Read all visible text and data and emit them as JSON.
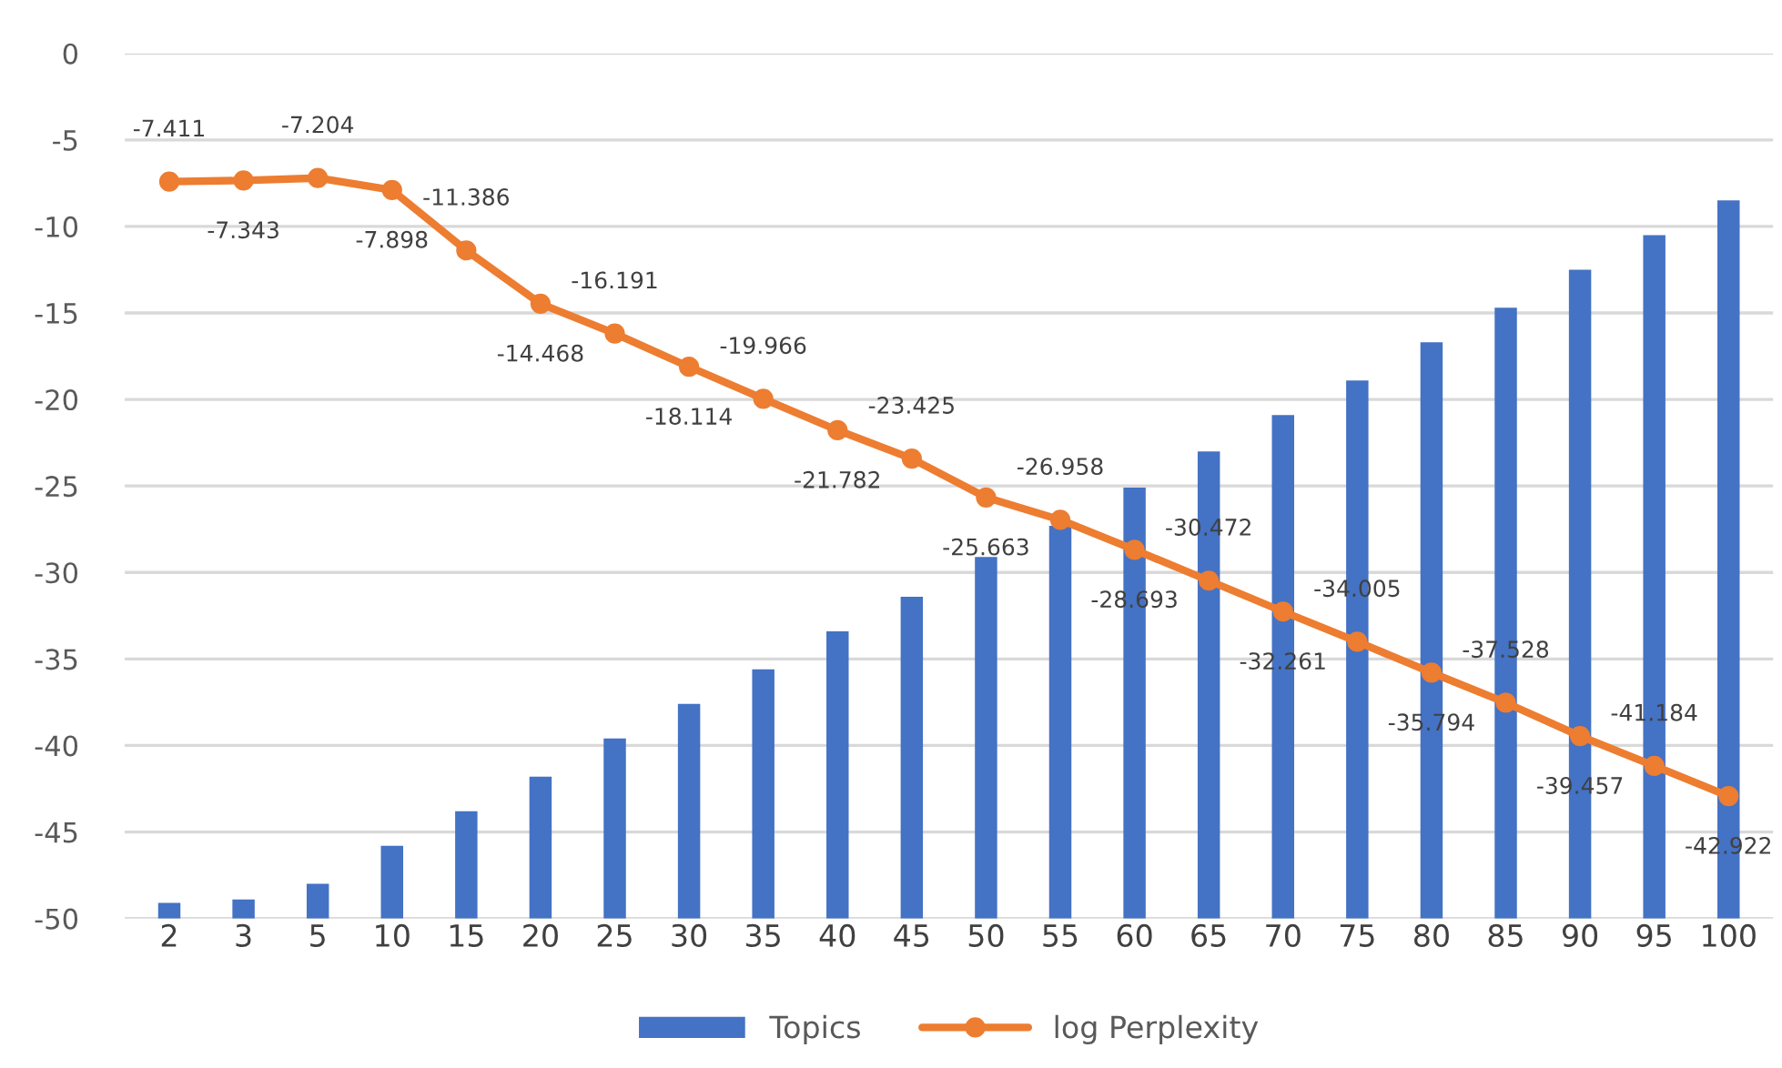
{
  "chart_data": {
    "type": "bar",
    "categories": [
      "2",
      "3",
      "5",
      "10",
      "15",
      "20",
      "25",
      "30",
      "35",
      "40",
      "45",
      "50",
      "55",
      "60",
      "65",
      "70",
      "75",
      "80",
      "85",
      "90",
      "95",
      "100"
    ],
    "series": [
      {
        "name": "Topics",
        "color": "#4472c4",
        "base": [
          -50,
          -50,
          -50,
          -50,
          -50,
          -50,
          -50,
          -50,
          -50,
          -50,
          -50,
          -50,
          -50,
          -50,
          -50,
          -50,
          -50,
          -50,
          -50,
          -50,
          -50,
          -50
        ],
        "values": [
          0.9,
          1.1,
          2.0,
          4.2,
          6.2,
          8.2,
          10.4,
          12.4,
          14.4,
          16.6,
          18.6,
          20.9,
          22.7,
          24.9,
          27.0,
          29.1,
          31.1,
          33.3,
          35.3,
          37.5,
          39.5,
          41.5
        ]
      },
      {
        "name": "log Perplexity",
        "type": "line",
        "color": "#ed7d31",
        "marker": "circle",
        "values": [
          -7.411,
          -7.343,
          -7.204,
          -7.898,
          -11.386,
          -14.468,
          -16.191,
          -18.114,
          -19.966,
          -21.782,
          -23.425,
          -25.663,
          -26.958,
          -28.693,
          -30.472,
          -32.261,
          -34.005,
          -35.794,
          -37.528,
          -39.457,
          -41.184,
          -42.922
        ],
        "value_labels": [
          "-7.411",
          "-7.343",
          "-7.204",
          "-7.898",
          "-11.386",
          "-14.468",
          "-16.191",
          "-18.114",
          "-19.966",
          "-21.782",
          "-23.425",
          "-25.663",
          "-26.958",
          "-28.693",
          "-30.472",
          "-32.261",
          "-34.005",
          "-35.794",
          "-37.528",
          "-39.457",
          "-41.184",
          "-42.922"
        ]
      }
    ],
    "ylim": [
      -50,
      0
    ],
    "yticks": [
      -50,
      -45,
      -40,
      -35,
      -30,
      -25,
      -20,
      -15,
      -10,
      -5,
      0
    ],
    "grid": "y",
    "legend": "bottom"
  }
}
